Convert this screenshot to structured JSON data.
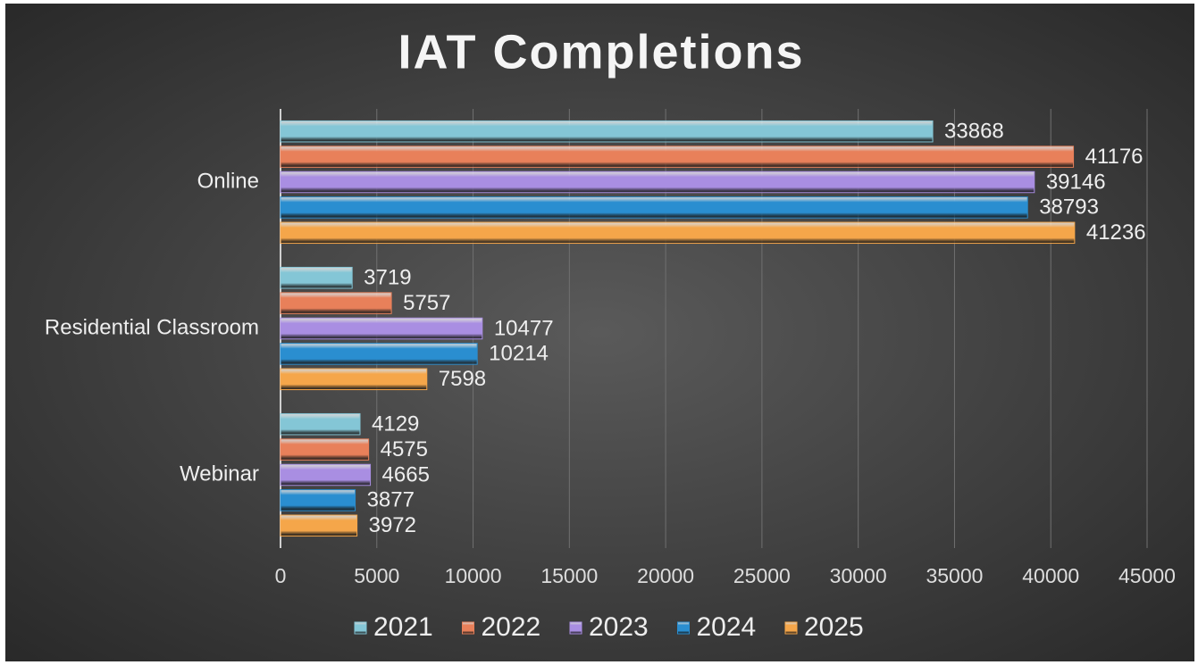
{
  "chart_data": {
    "type": "bar",
    "orientation": "horizontal",
    "title": "IAT Completions",
    "categories": [
      "Online",
      "Residential Classroom",
      "Webinar"
    ],
    "series": [
      {
        "name": "2021",
        "color": "#84c6d6",
        "values": [
          33868,
          3719,
          4129
        ]
      },
      {
        "name": "2022",
        "color": "#e8805a",
        "values": [
          41176,
          5757,
          4575
        ]
      },
      {
        "name": "2023",
        "color": "#a98ee2",
        "values": [
          39146,
          10477,
          4665
        ]
      },
      {
        "name": "2024",
        "color": "#2a8ed0",
        "values": [
          38793,
          10214,
          3877
        ]
      },
      {
        "name": "2025",
        "color": "#f5a64a",
        "values": [
          41236,
          7598,
          3972
        ]
      }
    ],
    "xlim": [
      0,
      45000
    ],
    "xticks": [
      0,
      5000,
      10000,
      15000,
      20000,
      25000,
      30000,
      35000,
      40000,
      45000
    ],
    "grid": true,
    "legend": "bottom"
  }
}
